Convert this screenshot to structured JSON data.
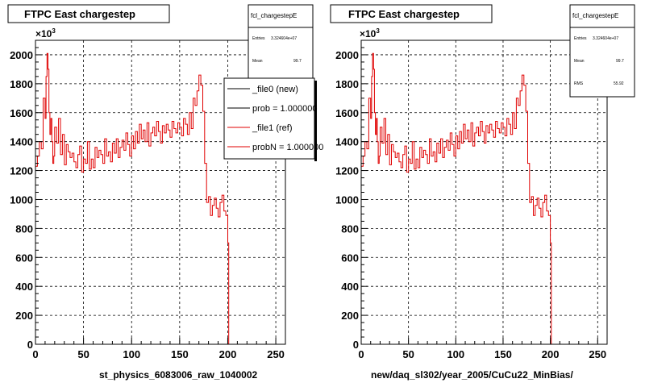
{
  "colors": {
    "ref": "#e00000",
    "new": "#000000",
    "grid": "#000000",
    "frame": "#000000"
  },
  "left": {
    "title": "FTPC East chargestep",
    "stats": {
      "name": "fcl_chargestepE",
      "entries_label": "Entries",
      "entries_value": "3.324604e+07",
      "mean_label": "Mean",
      "mean_value": "99.7"
    },
    "legend": [
      {
        "text": "_file0 (new)",
        "color": "#000000"
      },
      {
        "text": "prob = 1.000000",
        "color": "#000000"
      },
      {
        "text": "_file1 (ref)",
        "color": "#e00000"
      },
      {
        "text": "probN = 1.000000",
        "color": "#e00000"
      }
    ],
    "xlabel": "st_physics_6083006_raw_1040002",
    "exponent_base": "×10",
    "exponent_power": "3"
  },
  "right": {
    "title": "FTPC East chargestep",
    "stats": {
      "name": "fcl_chargestepE",
      "entries_label": "Entries",
      "entries_value": "3.324604e+07",
      "mean_label": "Mean",
      "mean_value": "99.7",
      "rms_label": "RMS",
      "rms_value": "55.92"
    },
    "xlabel": "new/daq_sl302/year_2005/CuCu22_MinBias/",
    "exponent_base": "×10",
    "exponent_power": "3"
  },
  "chart_data": [
    {
      "type": "line",
      "title": "FTPC East chargestep",
      "xlabel": "st_physics_6083006_raw_1040002",
      "ylabel": "",
      "xlim": [
        0,
        260
      ],
      "ylim": [
        0,
        2100
      ],
      "y_multiplier": 1000,
      "grid": true,
      "legend_position": "top-right",
      "x_ticks": [
        "0",
        "50",
        "100",
        "150",
        "200",
        "250"
      ],
      "y_ticks": [
        "0",
        "200",
        "400",
        "600",
        "800",
        "1000",
        "1200",
        "1400",
        "1600",
        "1800",
        "2000"
      ],
      "series": [
        {
          "name": "_file1 (ref)",
          "color": "#e00000",
          "x": [
            0,
            2,
            4,
            6,
            8,
            10,
            11,
            12,
            13,
            14,
            15,
            16,
            17,
            18,
            19,
            20,
            22,
            24,
            26,
            28,
            30,
            32,
            34,
            36,
            38,
            40,
            42,
            44,
            46,
            48,
            50,
            52,
            54,
            56,
            58,
            60,
            62,
            64,
            66,
            68,
            70,
            72,
            74,
            76,
            78,
            80,
            82,
            84,
            86,
            88,
            90,
            92,
            94,
            96,
            98,
            100,
            102,
            104,
            106,
            108,
            110,
            112,
            114,
            116,
            118,
            120,
            122,
            124,
            126,
            128,
            130,
            132,
            134,
            136,
            138,
            140,
            142,
            144,
            146,
            148,
            150,
            152,
            154,
            156,
            158,
            160,
            162,
            164,
            166,
            168,
            170,
            172,
            174,
            176,
            178,
            180,
            182,
            184,
            186,
            188,
            190,
            192,
            194,
            196,
            198,
            200,
            201,
            202,
            203,
            204
          ],
          "y": [
            1230,
            1300,
            1400,
            1350,
            1700,
            1560,
            1850,
            2010,
            1900,
            1600,
            1450,
            1560,
            1400,
            1250,
            1300,
            1500,
            1390,
            1560,
            1310,
            1450,
            1240,
            1380,
            1330,
            1290,
            1320,
            1260,
            1220,
            1310,
            1370,
            1190,
            1280,
            1250,
            1400,
            1210,
            1280,
            1220,
            1360,
            1290,
            1340,
            1310,
            1250,
            1420,
            1300,
            1330,
            1260,
            1390,
            1320,
            1420,
            1290,
            1360,
            1410,
            1340,
            1460,
            1380,
            1300,
            1440,
            1350,
            1470,
            1390,
            1520,
            1420,
            1480,
            1400,
            1530,
            1370,
            1460,
            1500,
            1440,
            1540,
            1470,
            1390,
            1510,
            1460,
            1520,
            1480,
            1430,
            1540,
            1490,
            1460,
            1530,
            1500,
            1440,
            1560,
            1520,
            1450,
            1600,
            1490,
            1700,
            1650,
            1750,
            1860,
            1790,
            1610,
            1250,
            980,
            1020,
            890,
            960,
            1010,
            940,
            880,
            980,
            1030,
            920,
            890,
            700,
            0,
            0,
            0,
            0
          ]
        }
      ]
    },
    {
      "type": "line",
      "title": "FTPC East chargestep",
      "xlabel": "new/daq_sl302/year_2005/CuCu22_MinBias/",
      "ylabel": "",
      "xlim": [
        0,
        260
      ],
      "ylim": [
        0,
        2100
      ],
      "y_multiplier": 1000,
      "grid": true,
      "x_ticks": [
        "0",
        "50",
        "100",
        "150",
        "200",
        "250"
      ],
      "y_ticks": [
        "0",
        "200",
        "400",
        "600",
        "800",
        "1000",
        "1200",
        "1400",
        "1600",
        "1800",
        "2000"
      ],
      "series": [
        {
          "name": "",
          "color": "#e00000",
          "x": [
            0,
            2,
            4,
            6,
            8,
            10,
            11,
            12,
            13,
            14,
            15,
            16,
            17,
            18,
            19,
            20,
            22,
            24,
            26,
            28,
            30,
            32,
            34,
            36,
            38,
            40,
            42,
            44,
            46,
            48,
            50,
            52,
            54,
            56,
            58,
            60,
            62,
            64,
            66,
            68,
            70,
            72,
            74,
            76,
            78,
            80,
            82,
            84,
            86,
            88,
            90,
            92,
            94,
            96,
            98,
            100,
            102,
            104,
            106,
            108,
            110,
            112,
            114,
            116,
            118,
            120,
            122,
            124,
            126,
            128,
            130,
            132,
            134,
            136,
            138,
            140,
            142,
            144,
            146,
            148,
            150,
            152,
            154,
            156,
            158,
            160,
            162,
            164,
            166,
            168,
            170,
            172,
            174,
            176,
            178,
            180,
            182,
            184,
            186,
            188,
            190,
            192,
            194,
            196,
            198,
            200,
            201,
            202,
            203,
            204
          ],
          "y": [
            1230,
            1300,
            1400,
            1350,
            1700,
            1560,
            1850,
            2010,
            1900,
            1600,
            1450,
            1560,
            1400,
            1250,
            1300,
            1500,
            1390,
            1560,
            1310,
            1450,
            1240,
            1380,
            1330,
            1290,
            1320,
            1260,
            1220,
            1310,
            1370,
            1190,
            1280,
            1250,
            1400,
            1210,
            1280,
            1220,
            1360,
            1290,
            1340,
            1310,
            1250,
            1420,
            1300,
            1330,
            1260,
            1390,
            1320,
            1420,
            1290,
            1360,
            1410,
            1340,
            1460,
            1380,
            1300,
            1440,
            1350,
            1470,
            1390,
            1520,
            1420,
            1480,
            1400,
            1530,
            1370,
            1460,
            1500,
            1440,
            1540,
            1470,
            1390,
            1510,
            1460,
            1520,
            1480,
            1430,
            1540,
            1490,
            1460,
            1530,
            1500,
            1440,
            1560,
            1520,
            1450,
            1600,
            1490,
            1700,
            1650,
            1750,
            1860,
            1790,
            1610,
            1250,
            980,
            1020,
            890,
            960,
            1010,
            940,
            880,
            980,
            1030,
            920,
            890,
            700,
            0,
            0,
            0,
            0
          ]
        }
      ]
    }
  ]
}
